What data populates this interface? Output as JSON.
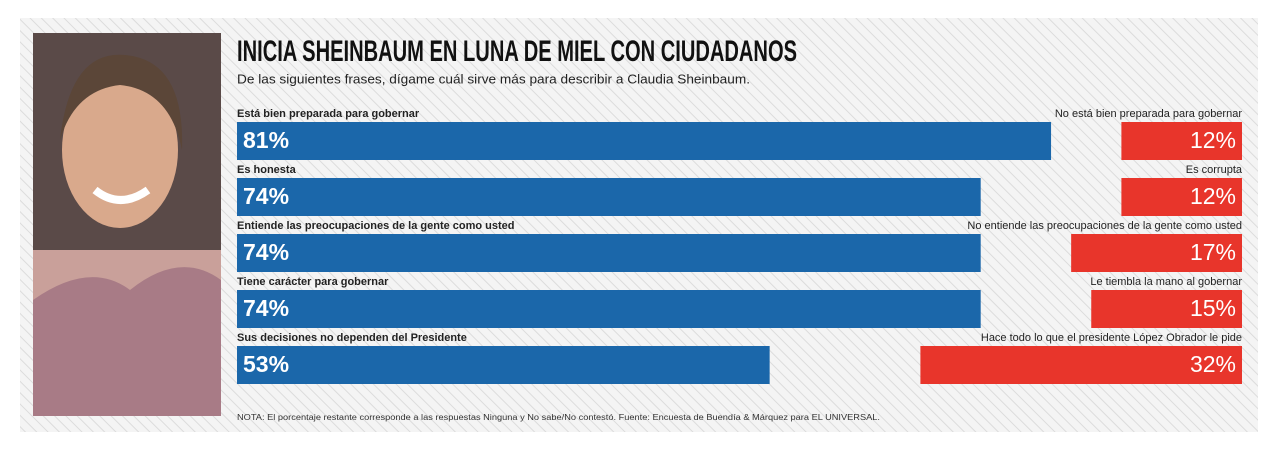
{
  "chart_data": {
    "type": "bar",
    "title": "INICIA SHEINBAUM EN LUNA DE MIEL CON CIUDADANOS",
    "subtitle": "De las siguientes frases, dígame cuál sirve más para describir a Claudia Sheinbaum.",
    "note": "NOTA: El porcentaje restante corresponde a las respuestas Ninguna y No sabe/No contestó. Fuente: Encuesta de Buendía & Márquez para EL UNIVERSAL.",
    "xlim": [
      0,
      100
    ],
    "series": [
      {
        "color": "#1b67aa",
        "labels": [
          "Está bien preparada para gobernar",
          "Es honesta",
          "Entiende las preocupaciones de la gente como usted",
          "Tiene carácter para gobernar",
          "Sus decisiones no dependen del Presidente"
        ],
        "values": [
          81,
          74,
          74,
          74,
          53
        ],
        "value_labels": [
          "81%",
          "74%",
          "74%",
          "74%",
          "53%"
        ]
      },
      {
        "color": "#e8352b",
        "labels": [
          "No está bien preparada para gobernar",
          "Es corrupta",
          "No entiende las preocupaciones de la gente como usted",
          "Le tiembla la mano al gobernar",
          "Hace todo lo que el presidente López Obrador le pide"
        ],
        "values": [
          12,
          12,
          17,
          15,
          32
        ],
        "value_labels": [
          "12%",
          "12%",
          "17%",
          "15%",
          "32%"
        ]
      }
    ]
  }
}
